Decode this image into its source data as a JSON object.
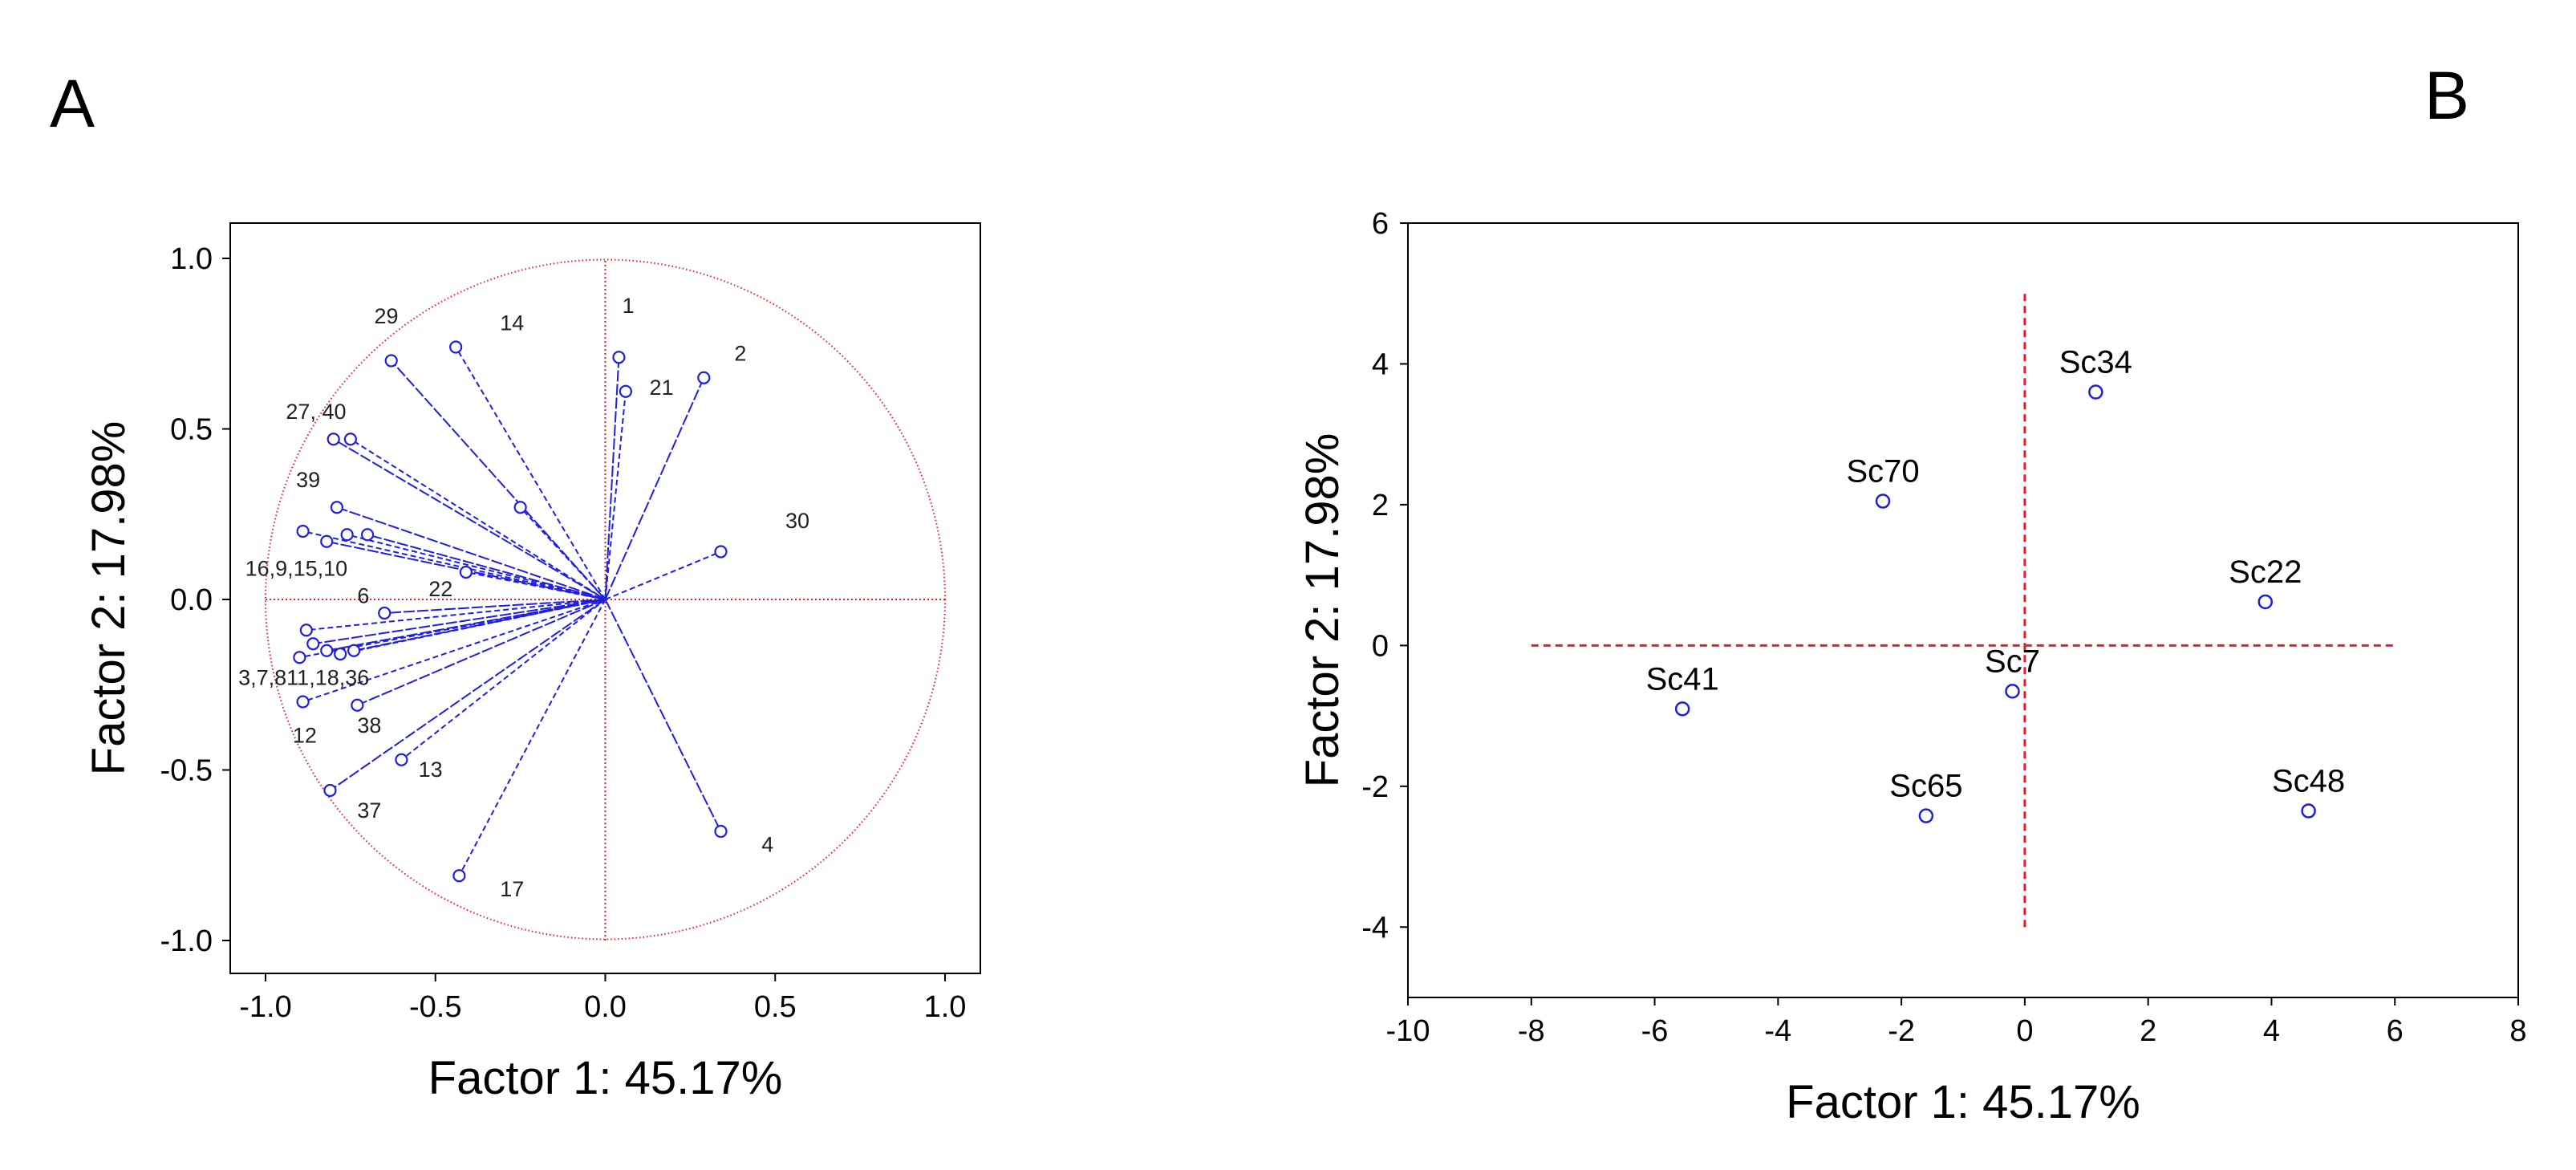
{
  "chart_data": [
    {
      "panel": "A",
      "type": "scatter",
      "subtype": "loading-plot",
      "xlabel": "Factor 1: 45.17%",
      "ylabel": "Factor 2: 17.98%",
      "xlim": [
        -1.0,
        1.0
      ],
      "ylim": [
        -1.0,
        1.0
      ],
      "xticks": [
        "-1.0",
        "-0.5",
        "0.0",
        "0.5",
        "1.0"
      ],
      "yticks": [
        "-1.0",
        "-0.5",
        "0.0",
        "0.5",
        "1.0"
      ],
      "unit_circle": true,
      "colors": {
        "vector": "#1f1fdd",
        "reference": "#e0202a"
      },
      "vectors": [
        {
          "x": 0.04,
          "y": 0.71
        },
        {
          "x": 0.06,
          "y": 0.61
        },
        {
          "x": 0.29,
          "y": 0.65
        },
        {
          "x": 0.34,
          "y": 0.14
        },
        {
          "x": 0.34,
          "y": -0.68
        },
        {
          "x": -0.44,
          "y": 0.74
        },
        {
          "x": -0.63,
          "y": 0.7
        },
        {
          "x": -0.25,
          "y": 0.27
        },
        {
          "x": -0.8,
          "y": 0.47
        },
        {
          "x": -0.75,
          "y": 0.47
        },
        {
          "x": -0.79,
          "y": 0.27
        },
        {
          "x": -0.89,
          "y": 0.2
        },
        {
          "x": -0.82,
          "y": 0.17
        },
        {
          "x": -0.76,
          "y": 0.19
        },
        {
          "x": -0.7,
          "y": 0.19
        },
        {
          "x": -0.41,
          "y": 0.08
        },
        {
          "x": -0.65,
          "y": -0.04
        },
        {
          "x": -0.88,
          "y": -0.09
        },
        {
          "x": -0.86,
          "y": -0.13
        },
        {
          "x": -0.9,
          "y": -0.17
        },
        {
          "x": -0.82,
          "y": -0.15
        },
        {
          "x": -0.78,
          "y": -0.16
        },
        {
          "x": -0.74,
          "y": -0.15
        },
        {
          "x": -0.89,
          "y": -0.3
        },
        {
          "x": -0.73,
          "y": -0.31
        },
        {
          "x": -0.6,
          "y": -0.47
        },
        {
          "x": -0.81,
          "y": -0.56
        },
        {
          "x": -0.43,
          "y": -0.81
        }
      ],
      "labels": [
        {
          "text": "1",
          "x": 0.05,
          "y": 0.84
        },
        {
          "text": "2",
          "x": 0.38,
          "y": 0.7
        },
        {
          "text": "21",
          "x": 0.13,
          "y": 0.6
        },
        {
          "text": "30",
          "x": 0.53,
          "y": 0.21
        },
        {
          "text": "4",
          "x": 0.46,
          "y": -0.74
        },
        {
          "text": "29",
          "x": -0.68,
          "y": 0.81
        },
        {
          "text": "14",
          "x": -0.31,
          "y": 0.79
        },
        {
          "text": "27, 40",
          "x": -0.94,
          "y": 0.53
        },
        {
          "text": "39",
          "x": -0.91,
          "y": 0.33
        },
        {
          "text": "16,9,15,10",
          "x": -1.06,
          "y": 0.07
        },
        {
          "text": "6",
          "x": -0.73,
          "y": -0.01
        },
        {
          "text": "22",
          "x": -0.52,
          "y": 0.01
        },
        {
          "text": "3,7,811,18,36",
          "x": -1.08,
          "y": -0.25
        },
        {
          "text": "12",
          "x": -0.92,
          "y": -0.42
        },
        {
          "text": "38",
          "x": -0.73,
          "y": -0.39
        },
        {
          "text": "13",
          "x": -0.55,
          "y": -0.52
        },
        {
          "text": "37",
          "x": -0.73,
          "y": -0.64
        },
        {
          "text": "17",
          "x": -0.31,
          "y": -0.87
        }
      ]
    },
    {
      "panel": "B",
      "type": "scatter",
      "subtype": "score-plot",
      "xlabel": "Factor 1: 45.17%",
      "ylabel": "Factor 2: 17.98%",
      "xlim": [
        -10,
        8
      ],
      "ylim": [
        -5,
        6
      ],
      "xticks": [
        "-10",
        "-8",
        "-6",
        "-4",
        "-2",
        "0",
        "2",
        "4",
        "6",
        "8"
      ],
      "yticks": [
        "-4",
        "-2",
        "0",
        "2",
        "4",
        "6"
      ],
      "reference_lines": {
        "h": {
          "y": 0,
          "x_from": -8,
          "x_to": 6
        },
        "v": {
          "x": 0,
          "y_from": -4,
          "y_to": 5
        }
      },
      "colors": {
        "point": "#1f1fdd",
        "reference": "#e0202a"
      },
      "points": [
        {
          "label": "Sc34",
          "x": 1.15,
          "y": 3.6
        },
        {
          "label": "Sc70",
          "x": -2.3,
          "y": 2.05
        },
        {
          "label": "Sc22",
          "x": 3.9,
          "y": 0.62
        },
        {
          "label": "Sc7",
          "x": -0.2,
          "y": -0.65
        },
        {
          "label": "Sc41",
          "x": -5.55,
          "y": -0.9
        },
        {
          "label": "Sc65",
          "x": -1.6,
          "y": -2.42
        },
        {
          "label": "Sc48",
          "x": 4.6,
          "y": -2.35
        }
      ]
    }
  ],
  "panels": {
    "a_letter": "A",
    "b_letter": "B"
  }
}
